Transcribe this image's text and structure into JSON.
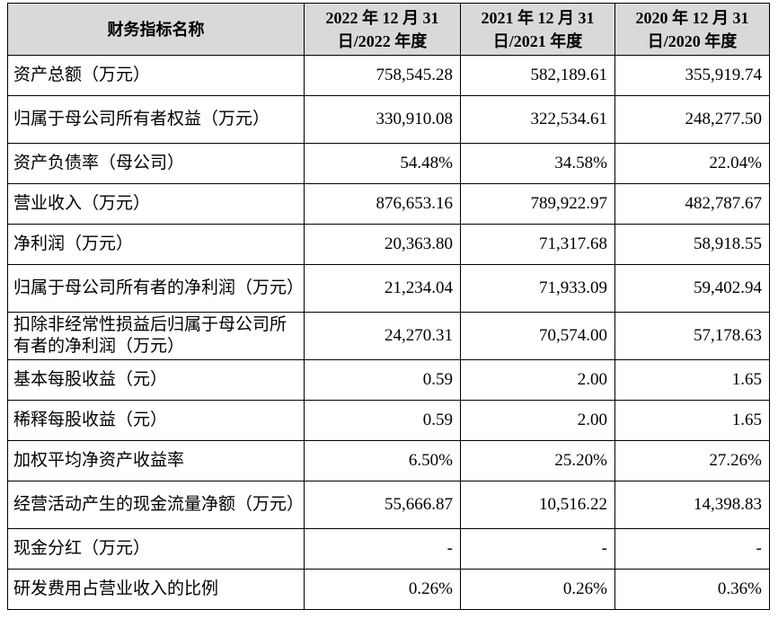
{
  "table": {
    "headers": [
      "财务指标名称",
      "2022 年 12 月 31 日/2022 年度",
      "2021 年 12 月 31 日/2021 年度",
      "2020 年 12 月 31 日/2020 年度"
    ],
    "rows": [
      {
        "label": "资产总额（万元）",
        "values": [
          "758,545.28",
          "582,189.61",
          "355,919.74"
        ]
      },
      {
        "label": "归属于母公司所有者权益（万元）",
        "values": [
          "330,910.08",
          "322,534.61",
          "248,277.50"
        ]
      },
      {
        "label": "资产负债率（母公司）",
        "values": [
          "54.48%",
          "34.58%",
          "22.04%"
        ]
      },
      {
        "label": "营业收入（万元）",
        "values": [
          "876,653.16",
          "789,922.97",
          "482,787.67"
        ]
      },
      {
        "label": "净利润（万元）",
        "values": [
          "20,363.80",
          "71,317.68",
          "58,918.55"
        ]
      },
      {
        "label": "归属于母公司所有者的净利润（万元）",
        "values": [
          "21,234.04",
          "71,933.09",
          "59,402.94"
        ]
      },
      {
        "label": "扣除非经常性损益后归属于母公司所有者的净利润（万元）",
        "values": [
          "24,270.31",
          "70,574.00",
          "57,178.63"
        ]
      },
      {
        "label": "基本每股收益（元）",
        "values": [
          "0.59",
          "2.00",
          "1.65"
        ]
      },
      {
        "label": "稀释每股收益（元）",
        "values": [
          "0.59",
          "2.00",
          "1.65"
        ]
      },
      {
        "label": "加权平均净资产收益率",
        "values": [
          "6.50%",
          "25.20%",
          "27.26%"
        ]
      },
      {
        "label": "经营活动产生的现金流量净额（万元）",
        "values": [
          "55,666.87",
          "10,516.22",
          "14,398.83"
        ]
      },
      {
        "label": "现金分红（万元）",
        "values": [
          "-",
          "-",
          "-"
        ]
      },
      {
        "label": "研发费用占营业收入的比例",
        "values": [
          "0.26%",
          "0.26%",
          "0.36%"
        ]
      }
    ]
  }
}
